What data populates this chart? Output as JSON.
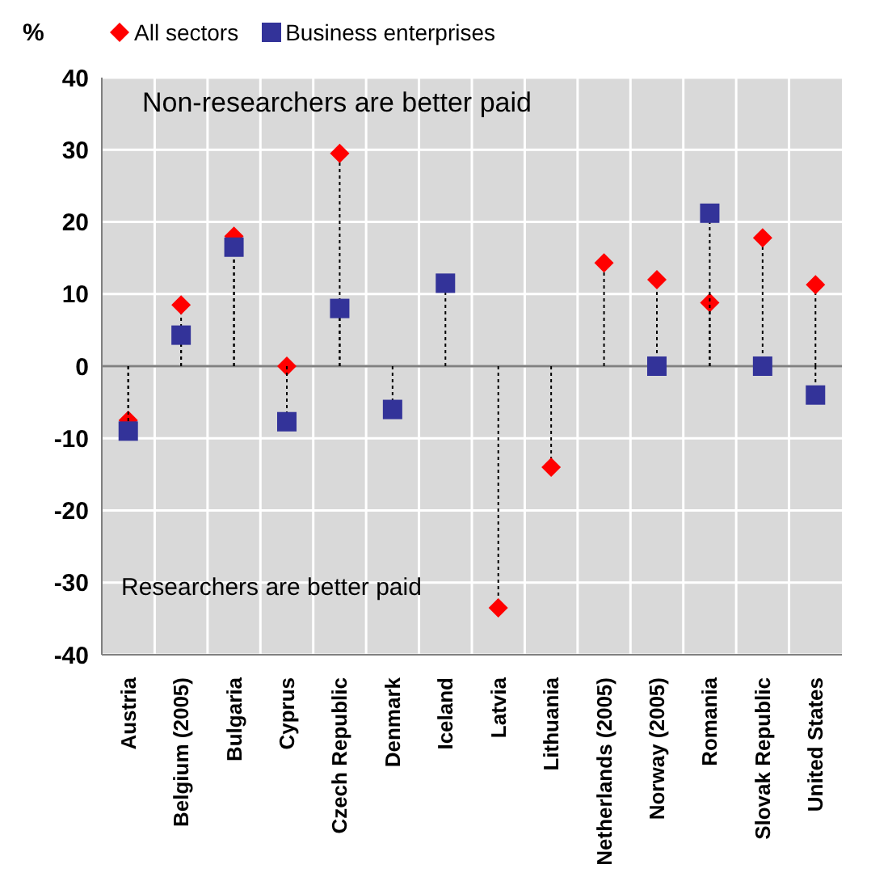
{
  "chart_data": {
    "type": "lollipop",
    "ylabel": "%",
    "categories": [
      "Austria",
      "Belgium (2005)",
      "Bulgaria",
      "Cyprus",
      "Czech Republic",
      "Denmark",
      "Iceland",
      "Latvia",
      "Lithuania",
      "Netherlands (2005)",
      "Norway (2005)",
      "Romania",
      "Slovak Republic",
      "United States"
    ],
    "series": [
      {
        "name": "All sectors",
        "color": "#ff0000",
        "marker": "diamond",
        "values": [
          -7.5,
          8.5,
          18,
          0,
          29.5,
          null,
          null,
          -33.5,
          -14,
          14.3,
          12,
          8.8,
          17.8,
          11.3
        ]
      },
      {
        "name": "Business enterprises",
        "color": "#333399",
        "marker": "square",
        "values": [
          -9,
          4.3,
          16.5,
          -7.7,
          8,
          -6,
          11.5,
          null,
          null,
          null,
          0,
          21.2,
          0,
          -4
        ]
      }
    ],
    "ylim": [
      -40,
      40
    ],
    "yticks": [
      -40,
      -30,
      -20,
      -10,
      0,
      10,
      20,
      30,
      40
    ],
    "grid": true,
    "legend": "top left",
    "line_style": "dotted",
    "ref_lines": [
      {
        "axis": "y",
        "value": 0,
        "color": "#808080"
      }
    ],
    "annotations": [
      "Non-researchers are better paid",
      "Researchers are better paid"
    ]
  }
}
